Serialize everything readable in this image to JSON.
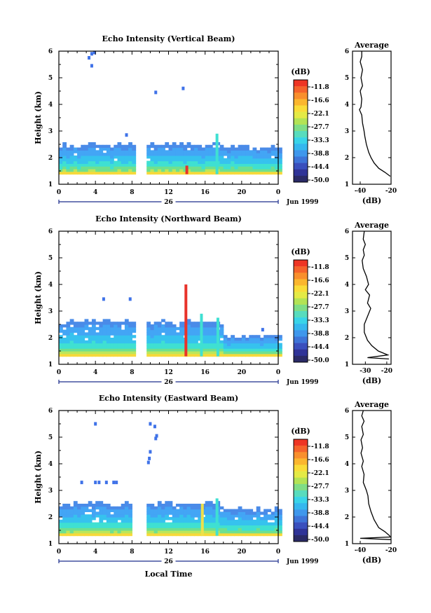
{
  "chart_data": [
    {
      "type": "heatmap",
      "title": "Echo Intensity (Vertical Beam)",
      "ylabel": "Height (km)",
      "x_ticks": [
        "0",
        "4",
        "8",
        "12",
        "16",
        "20",
        "0"
      ],
      "xlim": [
        0,
        24
      ],
      "y_ticks": [
        "1",
        "2",
        "3",
        "4",
        "5",
        "6"
      ],
      "ylim": [
        1,
        6
      ],
      "date_day": "26",
      "date_month": "Jun 1999",
      "colorbar": {
        "unit": "(dB)",
        "ticks": [
          "-11.8",
          "-16.6",
          "-22.1",
          "-27.7",
          "-33.3",
          "-38.8",
          "-44.4",
          "-50.0"
        ]
      },
      "data_gap": [
        8.6,
        9.4
      ],
      "echo_layer": {
        "base_km": 1.38,
        "top_km": 2.45,
        "top_km_late": 2.35,
        "late_start_hour": 17.5
      },
      "plumes": [
        {
          "hour": 14,
          "top_km": 1.7,
          "color": "red"
        },
        {
          "hour": 17.3,
          "top_km": 2.9,
          "color": "cyan"
        }
      ],
      "isolated_echoes": [
        [
          3.6,
          5.9
        ],
        [
          3.9,
          5.95
        ],
        [
          3.3,
          5.75
        ],
        [
          3.6,
          5.45
        ],
        [
          10.6,
          4.45
        ],
        [
          13.6,
          4.6
        ],
        [
          7.4,
          2.85
        ]
      ],
      "average_profile": {
        "title": "Average",
        "xlabel": "(dB)",
        "x_ticks": [
          "-40",
          "-20"
        ],
        "xlim": [
          -45,
          -20
        ],
        "ylim": [
          1,
          6
        ],
        "y_ticks": [
          "1",
          "2",
          "3",
          "4",
          "5",
          "6"
        ],
        "points": [
          [
            -39,
            6.0
          ],
          [
            -39,
            5.8
          ],
          [
            -40,
            5.6
          ],
          [
            -38.5,
            5.3
          ],
          [
            -39.5,
            5.0
          ],
          [
            -38.5,
            4.7
          ],
          [
            -40,
            4.5
          ],
          [
            -39,
            4.2
          ],
          [
            -39.5,
            3.9
          ],
          [
            -40.5,
            3.8
          ],
          [
            -39,
            3.6
          ],
          [
            -38.5,
            3.3
          ],
          [
            -37.5,
            3.0
          ],
          [
            -37,
            2.8
          ],
          [
            -36,
            2.5
          ],
          [
            -34.5,
            2.2
          ],
          [
            -33,
            2.0
          ],
          [
            -31,
            1.8
          ],
          [
            -28,
            1.6
          ],
          [
            -24,
            1.45
          ],
          [
            -20.5,
            1.3
          ]
        ]
      }
    },
    {
      "type": "heatmap",
      "title": "Echo Intensity (Northward Beam)",
      "ylabel": "Height (km)",
      "x_ticks": [
        "0",
        "4",
        "8",
        "12",
        "16",
        "20",
        "0"
      ],
      "xlim": [
        0,
        24
      ],
      "y_ticks": [
        "1",
        "2",
        "3",
        "4",
        "5",
        "6"
      ],
      "ylim": [
        1,
        6
      ],
      "date_day": "26",
      "date_month": "Jun 1999",
      "colorbar": {
        "unit": "(dB)",
        "ticks": [
          "-11.8",
          "-16.6",
          "-22.1",
          "-27.7",
          "-33.3",
          "-38.8",
          "-44.4",
          "-50.0"
        ]
      },
      "data_gap": [
        8.6,
        9.4
      ],
      "echo_layer": {
        "base_km": 1.3,
        "top_km": 2.55,
        "top_km_late": 2.0,
        "late_start_hour": 17.8
      },
      "plumes": [
        {
          "hour": 13.9,
          "top_km": 4.0,
          "color": "red"
        },
        {
          "hour": 15.6,
          "top_km": 2.9,
          "color": "cyan"
        },
        {
          "hour": 17.4,
          "top_km": 2.75,
          "color": "cyan"
        }
      ],
      "isolated_echoes": [
        [
          4.9,
          3.45
        ],
        [
          7.8,
          3.45
        ],
        [
          22.3,
          2.3
        ]
      ],
      "average_profile": {
        "title": "Average",
        "xlabel": "(dB)",
        "x_ticks": [
          "-30",
          "-20"
        ],
        "xlim": [
          -36,
          -18
        ],
        "ylim": [
          1,
          6
        ],
        "y_ticks": [
          "1",
          "2",
          "3",
          "4",
          "5",
          "6"
        ],
        "points": [
          [
            -30.5,
            6.0
          ],
          [
            -31,
            5.7
          ],
          [
            -30,
            5.5
          ],
          [
            -31,
            5.3
          ],
          [
            -30.5,
            5.1
          ],
          [
            -31.5,
            4.9
          ],
          [
            -31,
            4.6
          ],
          [
            -29.5,
            4.3
          ],
          [
            -28.5,
            4.0
          ],
          [
            -30,
            3.8
          ],
          [
            -28,
            3.6
          ],
          [
            -29,
            3.3
          ],
          [
            -27.5,
            3.1
          ],
          [
            -29,
            2.8
          ],
          [
            -30.5,
            2.5
          ],
          [
            -30.5,
            2.2
          ],
          [
            -29,
            1.9
          ],
          [
            -27,
            1.7
          ],
          [
            -24,
            1.5
          ],
          [
            -19.5,
            1.35
          ],
          [
            -29,
            1.25
          ],
          [
            -19,
            1.2
          ]
        ]
      }
    },
    {
      "type": "heatmap",
      "title": "Echo Intensity (Eastward Beam)",
      "ylabel": "Height (km)",
      "xlabel": "Local Time",
      "x_ticks": [
        "0",
        "4",
        "8",
        "12",
        "16",
        "20",
        "0"
      ],
      "xlim": [
        0,
        24
      ],
      "y_ticks": [
        "1",
        "2",
        "3",
        "4",
        "5",
        "6"
      ],
      "ylim": [
        1,
        6
      ],
      "date_day": "26",
      "date_month": "Jun 1999",
      "colorbar": {
        "unit": "(dB)",
        "ticks": [
          "-11.8",
          "-16.6",
          "-22.1",
          "-27.7",
          "-33.3",
          "-38.8",
          "-44.4",
          "-50.0"
        ]
      },
      "data_gap": [
        8.2,
        9.4
      ],
      "echo_layer": {
        "base_km": 1.3,
        "top_km": 2.45,
        "top_km_late": 2.25,
        "late_start_hour": 17.5
      },
      "plumes": [
        {
          "hour": 15.7,
          "top_km": 2.5,
          "color": "yellow"
        },
        {
          "hour": 17.3,
          "top_km": 2.7,
          "color": "cyan"
        }
      ],
      "isolated_echoes": [
        [
          4.0,
          5.5
        ],
        [
          10.0,
          5.5
        ],
        [
          10.5,
          5.4
        ],
        [
          10.7,
          5.05
        ],
        [
          10.6,
          4.95
        ],
        [
          10.0,
          4.45
        ],
        [
          9.9,
          4.2
        ],
        [
          9.8,
          4.05
        ],
        [
          2.5,
          3.3
        ],
        [
          4.0,
          3.3
        ],
        [
          4.4,
          3.3
        ],
        [
          5.2,
          3.3
        ],
        [
          6.0,
          3.3
        ],
        [
          6.3,
          3.3
        ]
      ],
      "average_profile": {
        "title": "Average",
        "xlabel": "(dB)",
        "x_ticks": [
          "-40",
          "-20"
        ],
        "xlim": [
          -45,
          -20
        ],
        "ylim": [
          1,
          6
        ],
        "y_ticks": [
          "1",
          "2",
          "3",
          "4",
          "5",
          "6"
        ],
        "points": [
          [
            -38,
            6.0
          ],
          [
            -39,
            5.8
          ],
          [
            -37.5,
            5.6
          ],
          [
            -39,
            5.4
          ],
          [
            -38,
            5.1
          ],
          [
            -39.5,
            4.9
          ],
          [
            -38.5,
            4.6
          ],
          [
            -39.5,
            4.4
          ],
          [
            -38,
            4.1
          ],
          [
            -39,
            3.9
          ],
          [
            -37.5,
            3.6
          ],
          [
            -38,
            3.3
          ],
          [
            -36,
            3.0
          ],
          [
            -35,
            2.8
          ],
          [
            -34.5,
            2.5
          ],
          [
            -33,
            2.2
          ],
          [
            -31,
            1.9
          ],
          [
            -28,
            1.6
          ],
          [
            -24,
            1.45
          ],
          [
            -21,
            1.3
          ],
          [
            -20.5,
            1.25
          ],
          [
            -40,
            1.2
          ],
          [
            -20,
            1.15
          ]
        ]
      }
    }
  ]
}
